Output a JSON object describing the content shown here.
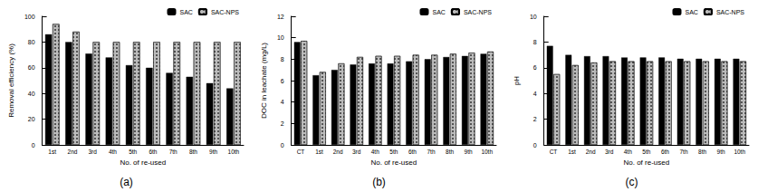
{
  "chart_data": [
    {
      "type": "bar",
      "title": "(a)",
      "x_label": "No. of re-used",
      "y_label": "Removal efficiency (%)",
      "categories": [
        "1st",
        "2nd",
        "3rd",
        "4th",
        "5th",
        "6th",
        "7th",
        "8th",
        "9th",
        "10th"
      ],
      "series": [
        {
          "name": "SAC",
          "color": "#000000",
          "values": [
            86,
            80,
            71,
            68,
            62,
            60,
            56,
            53,
            48,
            44
          ]
        },
        {
          "name": "SAC-NPS",
          "color": "#bbbbbb",
          "values": [
            94,
            88,
            80,
            80,
            80,
            80,
            80,
            80,
            80,
            80
          ]
        }
      ],
      "ylim": [
        0,
        100
      ],
      "yticks": [
        0,
        20,
        40,
        60,
        80,
        100
      ],
      "grid": false,
      "legend": "upper right"
    },
    {
      "type": "bar",
      "title": "(b)",
      "x_label": "No. of re-used",
      "y_label": "DOC in leachate (mg/L)",
      "categories": [
        "CT",
        "1st",
        "2nd",
        "3rd",
        "4th",
        "5th",
        "6th",
        "7th",
        "8th",
        "9th",
        "10th"
      ],
      "series": [
        {
          "name": "SAC",
          "color": "#000000",
          "values": [
            9.6,
            6.5,
            7.0,
            7.5,
            7.6,
            7.6,
            7.8,
            8.0,
            8.2,
            8.3,
            8.5
          ]
        },
        {
          "name": "SAC-NPS",
          "color": "#bbbbbb",
          "values": [
            9.7,
            6.8,
            7.6,
            8.2,
            8.3,
            8.3,
            8.4,
            8.4,
            8.5,
            8.6,
            8.7
          ]
        }
      ],
      "ylim": [
        0,
        12
      ],
      "yticks": [
        0,
        2,
        4,
        6,
        8,
        10,
        12
      ],
      "grid": false,
      "legend": "upper right"
    },
    {
      "type": "bar",
      "title": "(c)",
      "x_label": "No. of re-used",
      "y_label": "pH",
      "categories": [
        "CT",
        "1st",
        "2nd",
        "3rd",
        "4th",
        "5th",
        "6th",
        "7th",
        "8th",
        "9th",
        "10th"
      ],
      "series": [
        {
          "name": "SAC",
          "color": "#000000",
          "values": [
            7.7,
            7.0,
            6.9,
            6.9,
            6.8,
            6.8,
            6.8,
            6.7,
            6.7,
            6.7,
            6.7
          ]
        },
        {
          "name": "SAC-NPS",
          "color": "#bbbbbb",
          "values": [
            5.5,
            6.2,
            6.4,
            6.5,
            6.5,
            6.5,
            6.5,
            6.5,
            6.5,
            6.5,
            6.5
          ]
        }
      ],
      "ylim": [
        0,
        10
      ],
      "yticks": [
        0,
        2,
        4,
        6,
        8,
        10
      ],
      "grid": false,
      "legend": "upper right"
    }
  ]
}
